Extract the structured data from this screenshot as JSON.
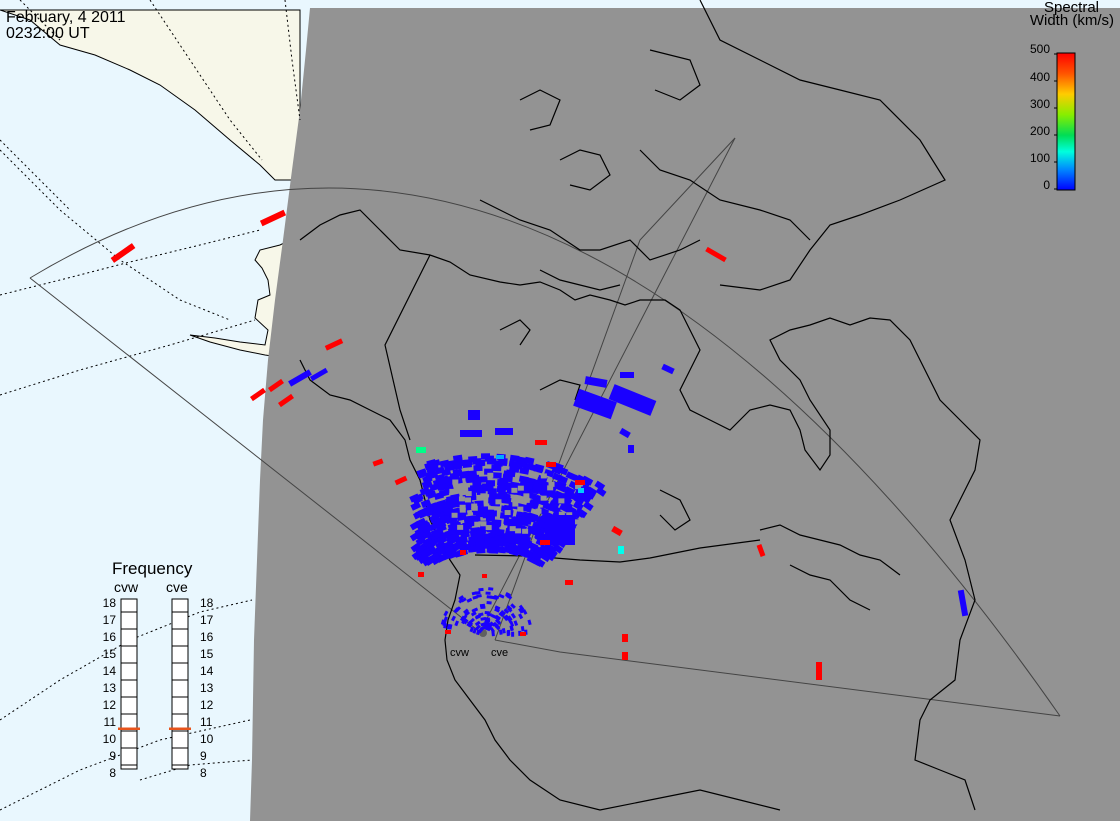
{
  "header": {
    "date": "February, 4 2011",
    "time": "0232:00 UT"
  },
  "colorbar": {
    "title_line1": "Spectral",
    "title_line2": "Width (km/s)",
    "ticks": [
      "500",
      "400",
      "300",
      "200",
      "100",
      "0"
    ],
    "range": [
      0,
      500
    ],
    "colors": [
      "#ff0000",
      "#ffaa00",
      "#ffff00",
      "#00dd00",
      "#00ffcc",
      "#0099ff",
      "#0000ff"
    ]
  },
  "frequency_panel": {
    "title": "Frequency",
    "radars": [
      {
        "name": "cvw",
        "frequency_mhz": 10.6
      },
      {
        "name": "cve",
        "frequency_mhz": 10.6
      }
    ],
    "scale": [
      "18",
      "17",
      "16",
      "15",
      "14",
      "13",
      "12",
      "11",
      "10",
      "9",
      "8"
    ]
  },
  "radar_sites": {
    "cvw_label": "cvw",
    "cve_label": "cve"
  },
  "colors": {
    "night_side": "#939393",
    "day_ocean": "#e9f7fe",
    "day_land": "#f7f7e9",
    "high_width": "#ff0000",
    "low_width": "#1a00ff",
    "frequency_marker": "#e8541c"
  }
}
